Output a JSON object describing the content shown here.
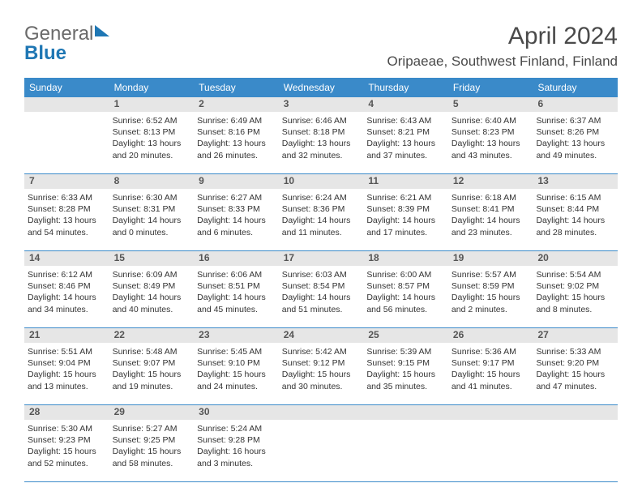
{
  "brand": {
    "part1": "General",
    "part2": "Blue"
  },
  "title": "April 2024",
  "location": "Oripaeae, Southwest Finland, Finland",
  "dow": [
    "Sunday",
    "Monday",
    "Tuesday",
    "Wednesday",
    "Thursday",
    "Friday",
    "Saturday"
  ],
  "colors": {
    "header_bar": "#3a8ac9",
    "header_text": "#ffffff",
    "daynum_bg": "#e6e6e6",
    "text": "#333333",
    "rule": "#3a8ac9"
  },
  "weeks": [
    {
      "days": [
        {
          "n": "",
          "sr": "",
          "ss": "",
          "dl": ""
        },
        {
          "n": "1",
          "sr": "Sunrise: 6:52 AM",
          "ss": "Sunset: 8:13 PM",
          "dl": "Daylight: 13 hours and 20 minutes."
        },
        {
          "n": "2",
          "sr": "Sunrise: 6:49 AM",
          "ss": "Sunset: 8:16 PM",
          "dl": "Daylight: 13 hours and 26 minutes."
        },
        {
          "n": "3",
          "sr": "Sunrise: 6:46 AM",
          "ss": "Sunset: 8:18 PM",
          "dl": "Daylight: 13 hours and 32 minutes."
        },
        {
          "n": "4",
          "sr": "Sunrise: 6:43 AM",
          "ss": "Sunset: 8:21 PM",
          "dl": "Daylight: 13 hours and 37 minutes."
        },
        {
          "n": "5",
          "sr": "Sunrise: 6:40 AM",
          "ss": "Sunset: 8:23 PM",
          "dl": "Daylight: 13 hours and 43 minutes."
        },
        {
          "n": "6",
          "sr": "Sunrise: 6:37 AM",
          "ss": "Sunset: 8:26 PM",
          "dl": "Daylight: 13 hours and 49 minutes."
        }
      ]
    },
    {
      "days": [
        {
          "n": "7",
          "sr": "Sunrise: 6:33 AM",
          "ss": "Sunset: 8:28 PM",
          "dl": "Daylight: 13 hours and 54 minutes."
        },
        {
          "n": "8",
          "sr": "Sunrise: 6:30 AM",
          "ss": "Sunset: 8:31 PM",
          "dl": "Daylight: 14 hours and 0 minutes."
        },
        {
          "n": "9",
          "sr": "Sunrise: 6:27 AM",
          "ss": "Sunset: 8:33 PM",
          "dl": "Daylight: 14 hours and 6 minutes."
        },
        {
          "n": "10",
          "sr": "Sunrise: 6:24 AM",
          "ss": "Sunset: 8:36 PM",
          "dl": "Daylight: 14 hours and 11 minutes."
        },
        {
          "n": "11",
          "sr": "Sunrise: 6:21 AM",
          "ss": "Sunset: 8:39 PM",
          "dl": "Daylight: 14 hours and 17 minutes."
        },
        {
          "n": "12",
          "sr": "Sunrise: 6:18 AM",
          "ss": "Sunset: 8:41 PM",
          "dl": "Daylight: 14 hours and 23 minutes."
        },
        {
          "n": "13",
          "sr": "Sunrise: 6:15 AM",
          "ss": "Sunset: 8:44 PM",
          "dl": "Daylight: 14 hours and 28 minutes."
        }
      ]
    },
    {
      "days": [
        {
          "n": "14",
          "sr": "Sunrise: 6:12 AM",
          "ss": "Sunset: 8:46 PM",
          "dl": "Daylight: 14 hours and 34 minutes."
        },
        {
          "n": "15",
          "sr": "Sunrise: 6:09 AM",
          "ss": "Sunset: 8:49 PM",
          "dl": "Daylight: 14 hours and 40 minutes."
        },
        {
          "n": "16",
          "sr": "Sunrise: 6:06 AM",
          "ss": "Sunset: 8:51 PM",
          "dl": "Daylight: 14 hours and 45 minutes."
        },
        {
          "n": "17",
          "sr": "Sunrise: 6:03 AM",
          "ss": "Sunset: 8:54 PM",
          "dl": "Daylight: 14 hours and 51 minutes."
        },
        {
          "n": "18",
          "sr": "Sunrise: 6:00 AM",
          "ss": "Sunset: 8:57 PM",
          "dl": "Daylight: 14 hours and 56 minutes."
        },
        {
          "n": "19",
          "sr": "Sunrise: 5:57 AM",
          "ss": "Sunset: 8:59 PM",
          "dl": "Daylight: 15 hours and 2 minutes."
        },
        {
          "n": "20",
          "sr": "Sunrise: 5:54 AM",
          "ss": "Sunset: 9:02 PM",
          "dl": "Daylight: 15 hours and 8 minutes."
        }
      ]
    },
    {
      "days": [
        {
          "n": "21",
          "sr": "Sunrise: 5:51 AM",
          "ss": "Sunset: 9:04 PM",
          "dl": "Daylight: 15 hours and 13 minutes."
        },
        {
          "n": "22",
          "sr": "Sunrise: 5:48 AM",
          "ss": "Sunset: 9:07 PM",
          "dl": "Daylight: 15 hours and 19 minutes."
        },
        {
          "n": "23",
          "sr": "Sunrise: 5:45 AM",
          "ss": "Sunset: 9:10 PM",
          "dl": "Daylight: 15 hours and 24 minutes."
        },
        {
          "n": "24",
          "sr": "Sunrise: 5:42 AM",
          "ss": "Sunset: 9:12 PM",
          "dl": "Daylight: 15 hours and 30 minutes."
        },
        {
          "n": "25",
          "sr": "Sunrise: 5:39 AM",
          "ss": "Sunset: 9:15 PM",
          "dl": "Daylight: 15 hours and 35 minutes."
        },
        {
          "n": "26",
          "sr": "Sunrise: 5:36 AM",
          "ss": "Sunset: 9:17 PM",
          "dl": "Daylight: 15 hours and 41 minutes."
        },
        {
          "n": "27",
          "sr": "Sunrise: 5:33 AM",
          "ss": "Sunset: 9:20 PM",
          "dl": "Daylight: 15 hours and 47 minutes."
        }
      ]
    },
    {
      "days": [
        {
          "n": "28",
          "sr": "Sunrise: 5:30 AM",
          "ss": "Sunset: 9:23 PM",
          "dl": "Daylight: 15 hours and 52 minutes."
        },
        {
          "n": "29",
          "sr": "Sunrise: 5:27 AM",
          "ss": "Sunset: 9:25 PM",
          "dl": "Daylight: 15 hours and 58 minutes."
        },
        {
          "n": "30",
          "sr": "Sunrise: 5:24 AM",
          "ss": "Sunset: 9:28 PM",
          "dl": "Daylight: 16 hours and 3 minutes."
        },
        {
          "n": "",
          "sr": "",
          "ss": "",
          "dl": ""
        },
        {
          "n": "",
          "sr": "",
          "ss": "",
          "dl": ""
        },
        {
          "n": "",
          "sr": "",
          "ss": "",
          "dl": ""
        },
        {
          "n": "",
          "sr": "",
          "ss": "",
          "dl": ""
        }
      ]
    }
  ]
}
